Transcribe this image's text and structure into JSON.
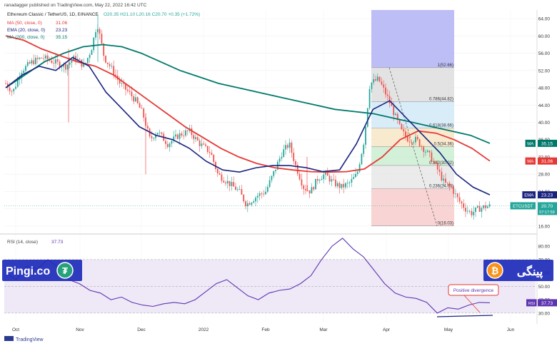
{
  "header": {
    "published": "ranadagger published on TradingView.com, May 22, 2022 16:42 UTC",
    "symbol_line": "Ethereum Classic / TetherUS, 1D, BINANCE",
    "ohlc": "O20.35  H21.10  L20.16  C20.70  +0.35 (+1.72%)"
  },
  "legend": [
    {
      "label": "MA (50, close, 0)",
      "value": "31.06",
      "color": "#e53935"
    },
    {
      "label": "EMA (20, close, 0)",
      "value": "23.23",
      "color": "#1a237e"
    },
    {
      "label": "MA (200, close, 0)",
      "value": "35.15",
      "color": "#00796b"
    }
  ],
  "rsi_legend": {
    "label": "RSI (14, close)",
    "value": "37.73",
    "color": "#5e35b1"
  },
  "colors": {
    "up": "#26a69a",
    "down": "#ef5350",
    "ma50": "#e53935",
    "ema20": "#1a237e",
    "ma200": "#00796b",
    "rsi": "#5e35b1",
    "rsi_band": "#ede7f6"
  },
  "chart_data": [
    {
      "type": "candlestick",
      "x": [
        "Oct",
        "Nov",
        "Dec",
        "2022",
        "Feb",
        "Mar",
        "Apr",
        "May",
        "Jun"
      ],
      "yticks": [
        "64.00",
        "60.00",
        "56.00",
        "52.00",
        "48.00",
        "44.00",
        "40.00",
        "36.00",
        "32.00",
        "28.00",
        "24.00",
        "20.00",
        "16.00"
      ],
      "ylim": [
        14.5,
        66
      ],
      "ma50": [
        60,
        59,
        57,
        55.5,
        54,
        53,
        51,
        48,
        45,
        42,
        39,
        36.5,
        34,
        32,
        30.5,
        29.5,
        29,
        28.6,
        28.5,
        28.6,
        29.2,
        32,
        36,
        38,
        37.5,
        36,
        34,
        31.06
      ],
      "ema20": [
        48,
        51,
        53,
        52,
        55,
        53,
        47,
        43,
        39,
        37,
        36,
        34,
        31,
        29,
        28.5,
        29.5,
        30,
        30,
        29.5,
        28.6,
        29,
        35,
        43,
        45,
        41,
        37,
        33,
        28,
        25,
        23.23
      ],
      "ma200": [
        48,
        51,
        54,
        56,
        57.5,
        58,
        57.5,
        56,
        54,
        52,
        50.5,
        49,
        48,
        47,
        46,
        45,
        44,
        43,
        42.5,
        42,
        41,
        40,
        39,
        38,
        37,
        35.15
      ],
      "rsi": [
        60,
        55,
        65,
        63,
        70,
        64,
        55,
        52,
        47,
        45,
        40,
        42,
        38,
        36,
        35,
        37,
        38,
        37,
        40,
        46,
        52,
        55,
        49,
        43,
        40,
        45,
        47,
        48,
        52,
        58,
        70,
        80,
        86,
        78,
        72,
        62,
        52,
        45,
        42,
        41,
        38,
        30,
        34,
        33,
        36,
        38,
        37.73
      ],
      "rsi_yticks": [
        "80.00",
        "70.00",
        "60.00",
        "50.00",
        "40.00",
        "30.00"
      ],
      "rsi_ylim": [
        23,
        87
      ],
      "fib_levels": [
        {
          "label": "1(52.66)",
          "value": 52.66
        },
        {
          "label": "0.786(44.82)",
          "value": 44.82
        },
        {
          "label": "0.618(38.66)",
          "value": 38.66
        },
        {
          "label": "0.5(34.36)",
          "value": 34.36
        },
        {
          "label": "0.382(30.02)",
          "value": 30.02
        },
        {
          "label": "0.236(24.65)",
          "value": 24.65
        },
        {
          "label": "0(16.03)",
          "value": 16.03
        }
      ],
      "price_labels": [
        {
          "tag": "MA",
          "value": "35.15",
          "color": "#00796b"
        },
        {
          "tag": "MA",
          "value": "31.06",
          "color": "#e53935"
        },
        {
          "tag": "EMA",
          "value": "23.23",
          "color": "#1a237e"
        },
        {
          "tag": "ETCUSDT",
          "value": "20.70",
          "sub": "07:17:59",
          "color": "#26a69a"
        }
      ],
      "annotation": "Positive divergence"
    }
  ],
  "watermarks": {
    "left": "Pingi.co",
    "right": "پینگی"
  },
  "footer": "TradingView"
}
